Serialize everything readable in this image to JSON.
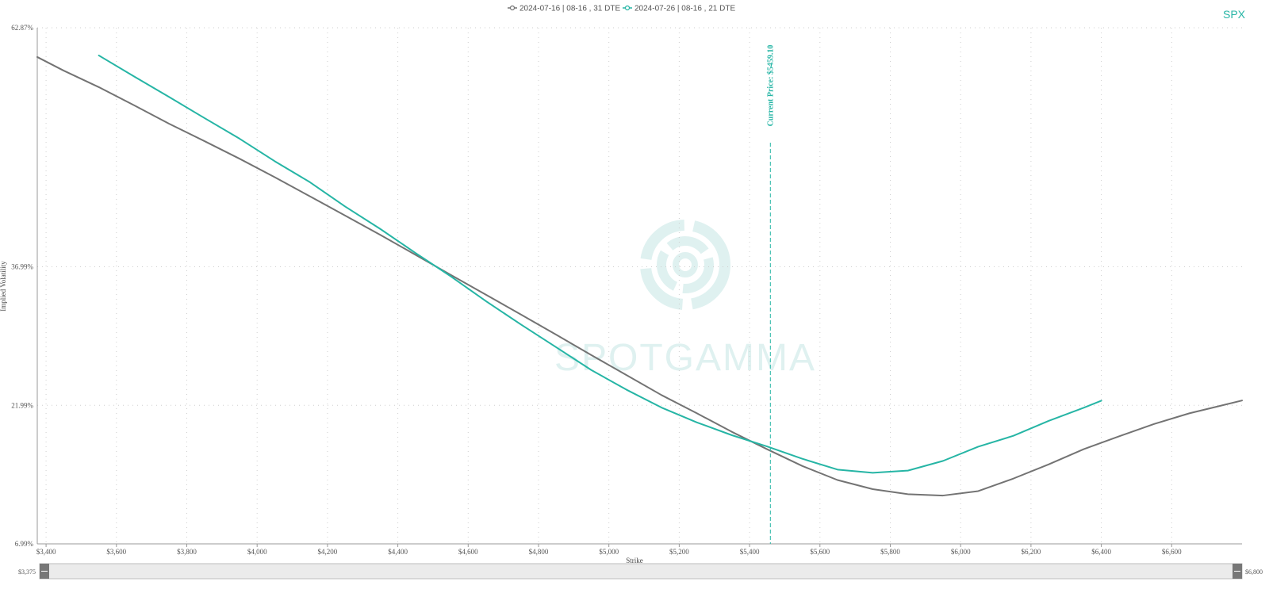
{
  "ticker": "SPX",
  "watermark": "SPOTGAMMA",
  "colors": {
    "series_0": "#737373",
    "series_1": "#26b5a5",
    "price_line": "#26b5a5",
    "grid": "#cfcfcf",
    "watermark": "#dff1f0"
  },
  "range_slider": {
    "min_label": "$3,375",
    "max_label": "$6,800"
  },
  "chart_data": {
    "type": "line",
    "xlabel": "Strike",
    "ylabel": "Implied Volatility",
    "xlim": [
      3375,
      6800
    ],
    "ylim": [
      6.99,
      62.87
    ],
    "y_ticks": [
      6.99,
      21.99,
      36.99,
      62.87
    ],
    "y_tick_labels": [
      "6.99%",
      "21.99%",
      "36.99%",
      "62.87%"
    ],
    "x_ticks": [
      3400,
      3600,
      3800,
      4000,
      4200,
      4400,
      4600,
      4800,
      5000,
      5200,
      5400,
      5600,
      5800,
      6000,
      6200,
      6400,
      6600
    ],
    "x_tick_labels": [
      "$3,400",
      "$3,600",
      "$3,800",
      "$4,000",
      "$4,200",
      "$4,400",
      "$4,600",
      "$4,800",
      "$5,000",
      "$5,200",
      "$5,400",
      "$5,600",
      "$5,800",
      "$6,000",
      "$6,200",
      "$6,400",
      "$6,600"
    ],
    "grid": true,
    "legend_position": "top-center",
    "current_price": {
      "label": "Current Price: $5459.10",
      "value": 5459.1
    },
    "series": [
      {
        "name": "2024-07-16 | 08-16 , 31 DTE",
        "x": [
          3375,
          3450,
          3550,
          3650,
          3750,
          3850,
          3950,
          4050,
          4150,
          4250,
          4350,
          4450,
          4550,
          4650,
          4750,
          4850,
          4950,
          5050,
          5150,
          5250,
          5350,
          5450,
          5550,
          5650,
          5750,
          5850,
          5950,
          6050,
          6150,
          6250,
          6350,
          6450,
          6550,
          6650,
          6800
        ],
        "values": [
          59.7,
          58.23,
          56.44,
          54.48,
          52.47,
          50.6,
          48.69,
          46.69,
          44.62,
          42.54,
          40.45,
          38.29,
          36.12,
          33.98,
          31.82,
          29.64,
          27.43,
          25.26,
          23.09,
          21.13,
          19.11,
          17.23,
          15.42,
          13.9,
          12.91,
          12.37,
          12.22,
          12.7,
          14.06,
          15.59,
          17.24,
          18.63,
          19.97,
          21.12,
          22.51
        ]
      },
      {
        "name": "2024-07-26 | 08-16 , 21 DTE",
        "x": [
          3550,
          3650,
          3750,
          3850,
          3950,
          4050,
          4150,
          4250,
          4350,
          4450,
          4550,
          4650,
          4750,
          4850,
          4950,
          5050,
          5150,
          5250,
          5350,
          5450,
          5550,
          5650,
          5750,
          5850,
          5950,
          6050,
          6150,
          6250,
          6350,
          6400
        ],
        "values": [
          59.87,
          57.6,
          55.37,
          53.1,
          50.86,
          48.42,
          46.15,
          43.52,
          41.09,
          38.49,
          35.97,
          33.28,
          30.74,
          28.28,
          25.81,
          23.68,
          21.74,
          20.14,
          18.75,
          17.53,
          16.2,
          15.03,
          14.68,
          14.92,
          15.97,
          17.51,
          18.69,
          20.3,
          21.73,
          22.49
        ]
      }
    ]
  }
}
